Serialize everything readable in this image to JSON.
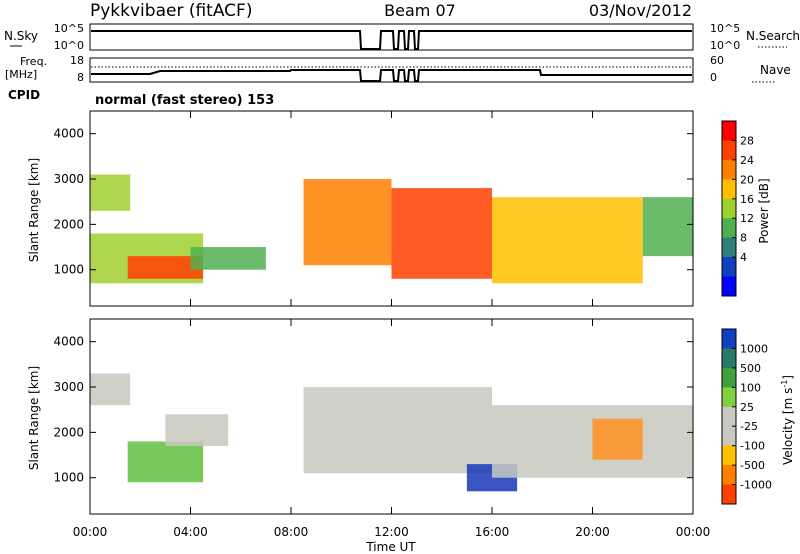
{
  "header": {
    "title": "Pykkvibaer (fitACF)",
    "beam": "Beam 07",
    "date": "03/Nov/2012"
  },
  "top_panels": {
    "nsky_label": "N.Sky",
    "nsky_ticks": [
      "10^5",
      "10^0"
    ],
    "nsearch_label": "N.Search",
    "nsearch_ticks": [
      "10^5",
      "10^0"
    ],
    "freq_label_1": "Freq.",
    "freq_label_2": "[MHz]",
    "freq_ticks": [
      "18",
      "8"
    ],
    "nave_label": "Nave",
    "nave_ticks": [
      "60",
      "0"
    ],
    "cpid_label": "CPID",
    "cpid_value": "normal (fast stereo) 153"
  },
  "chart_data": [
    {
      "type": "heatmap",
      "name": "power",
      "ylabel": "Slant Range [km]",
      "yticks": [
        1000,
        2000,
        3000,
        4000
      ],
      "ylim": [
        200,
        4500
      ],
      "xlim": [
        0,
        24
      ],
      "colorbar": {
        "label": "Power [dB]",
        "ticks": [
          "28",
          "24",
          "20",
          "16",
          "12",
          "8",
          "4"
        ],
        "colors": [
          "#ff0000",
          "#ff4000",
          "#ff8000",
          "#ffc000",
          "#a0d030",
          "#50b050",
          "#30807a",
          "#1040c0",
          "#0000ff"
        ]
      },
      "bands": [
        {
          "x": [
            0.0,
            4.5
          ],
          "y": [
            700,
            1800
          ],
          "level": 14
        },
        {
          "x": [
            0.0,
            1.6
          ],
          "y": [
            2300,
            3100
          ],
          "level": 12
        },
        {
          "x": [
            1.5,
            4.5
          ],
          "y": [
            800,
            1300
          ],
          "level": 26
        },
        {
          "x": [
            4.0,
            7.0
          ],
          "y": [
            1000,
            1500
          ],
          "level": 8
        },
        {
          "x": [
            8.5,
            12.0
          ],
          "y": [
            1100,
            3000
          ],
          "level": 22
        },
        {
          "x": [
            12.0,
            16.0
          ],
          "y": [
            800,
            2800
          ],
          "level": 24
        },
        {
          "x": [
            16.0,
            22.0
          ],
          "y": [
            700,
            2600
          ],
          "level": 16
        },
        {
          "x": [
            22.0,
            24.0
          ],
          "y": [
            1300,
            2600
          ],
          "level": 10
        }
      ]
    },
    {
      "type": "heatmap",
      "name": "velocity",
      "ylabel": "Slant Range [km]",
      "yticks": [
        1000,
        2000,
        3000,
        4000
      ],
      "ylim": [
        200,
        4500
      ],
      "xlim": [
        0,
        24
      ],
      "xlabel": "Time UT",
      "xticks": [
        "00:00",
        "04:00",
        "08:00",
        "12:00",
        "16:00",
        "20:00",
        "00:00"
      ],
      "colorbar": {
        "label": "Velocity [m s",
        "label_exp": "-1",
        "label_end": "]",
        "ticks": [
          "1000",
          "500",
          "100",
          "25",
          "-25",
          "-100",
          "-500",
          "-1000"
        ],
        "colors": [
          "#1040c0",
          "#2a7a6a",
          "#40a040",
          "#80d040",
          "#c8c8c0",
          "#c8c8c0",
          "#ffc000",
          "#ff8000",
          "#ff4000"
        ]
      },
      "bands": [
        {
          "x": [
            0.0,
            1.6
          ],
          "y": [
            2600,
            3300
          ],
          "level": "grey"
        },
        {
          "x": [
            1.5,
            4.5
          ],
          "y": [
            900,
            1800
          ],
          "level": "green"
        },
        {
          "x": [
            3.0,
            5.5
          ],
          "y": [
            1700,
            2400
          ],
          "level": "grey"
        },
        {
          "x": [
            8.5,
            16.0
          ],
          "y": [
            1100,
            3000
          ],
          "level": "grey"
        },
        {
          "x": [
            15.0,
            17.0
          ],
          "y": [
            700,
            1300
          ],
          "level": "blue"
        },
        {
          "x": [
            16.0,
            24.0
          ],
          "y": [
            1000,
            2600
          ],
          "level": "grey"
        },
        {
          "x": [
            20.0,
            22.0
          ],
          "y": [
            1400,
            2300
          ],
          "level": "orange"
        }
      ]
    }
  ]
}
